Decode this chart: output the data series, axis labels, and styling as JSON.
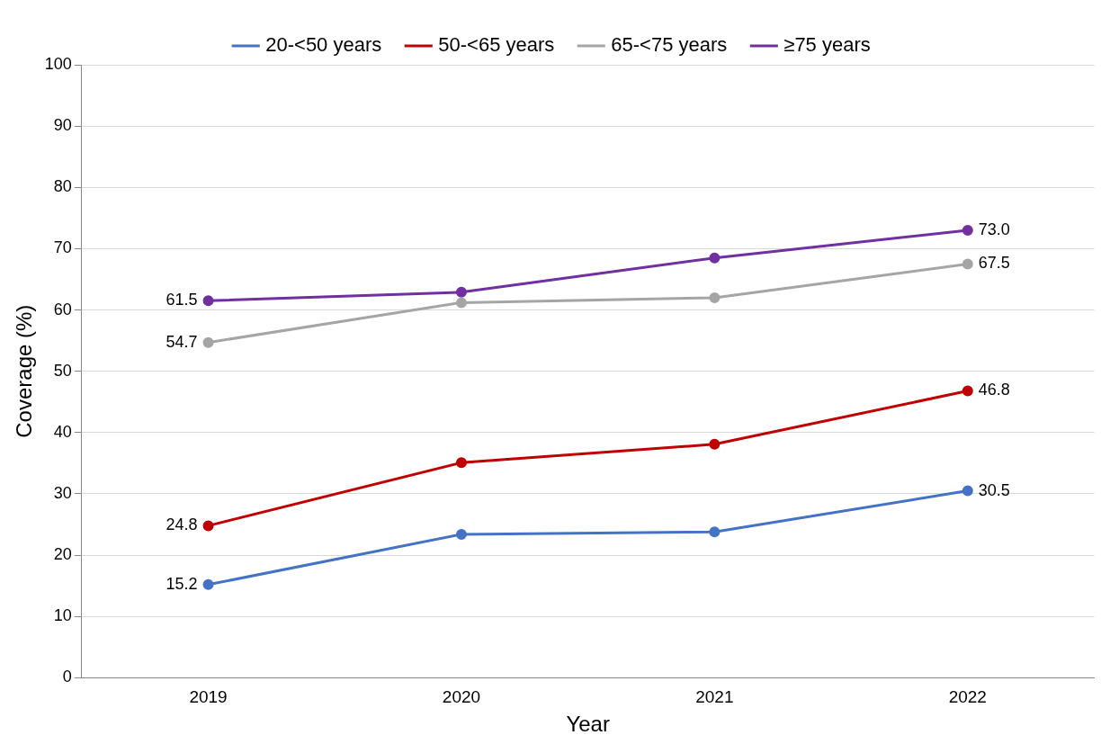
{
  "chart_data": {
    "type": "line",
    "xlabel": "Year",
    "ylabel": "Coverage (%)",
    "categories": [
      "2019",
      "2020",
      "2021",
      "2022"
    ],
    "ylim": [
      0,
      100
    ],
    "yticks": [
      0,
      10,
      20,
      30,
      40,
      50,
      60,
      70,
      80,
      90,
      100
    ],
    "grid": "y",
    "legend": "top",
    "marker": "circle",
    "line_style": "solid",
    "series": [
      {
        "name": "20-<50 years",
        "color": "#4472c4",
        "values": [
          15.2,
          23.4,
          23.8,
          30.5
        ],
        "value_labels": [
          "15.2",
          null,
          null,
          "30.5"
        ]
      },
      {
        "name": "50-<65 years",
        "color": "#c00000",
        "values": [
          24.8,
          35.1,
          38.1,
          46.8
        ],
        "value_labels": [
          "24.8",
          null,
          null,
          "46.8"
        ]
      },
      {
        "name": "65-<75 years",
        "color": "#a5a5a5",
        "values": [
          54.7,
          61.2,
          62.0,
          67.5
        ],
        "value_labels": [
          "54.7",
          null,
          null,
          "67.5"
        ]
      },
      {
        "name": "≥75 years",
        "color": "#7030a0",
        "values": [
          61.5,
          62.9,
          68.5,
          73.0
        ],
        "value_labels": [
          "61.5",
          null,
          null,
          "73.0"
        ]
      }
    ]
  }
}
